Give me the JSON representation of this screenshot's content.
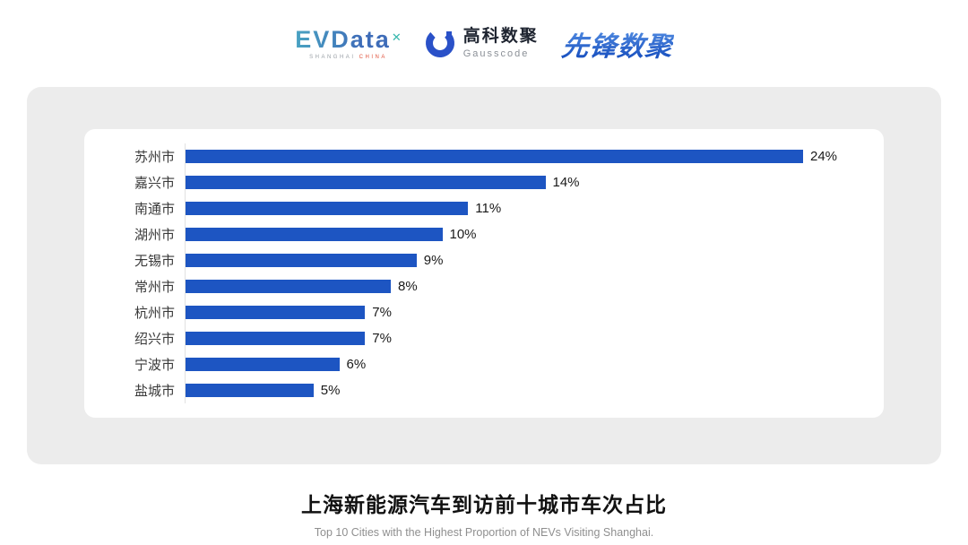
{
  "header": {
    "evdata": {
      "word": "EVData",
      "sup": "✕",
      "tagline_left": "SHANGHAI",
      "tagline_right": "CHINA"
    },
    "gausscode": {
      "icon": "gausscode-ring-icon",
      "cn": "高科数聚",
      "en": "Gausscode"
    },
    "xianfeng": {
      "word": "先锋数聚"
    }
  },
  "chart_data": {
    "type": "bar",
    "orientation": "horizontal",
    "categories": [
      "苏州市",
      "嘉兴市",
      "南通市",
      "湖州市",
      "无锡市",
      "常州市",
      "杭州市",
      "绍兴市",
      "宁波市",
      "盐城市"
    ],
    "values": [
      24,
      14,
      11,
      10,
      9,
      8,
      7,
      7,
      6,
      5
    ],
    "value_suffix": "%",
    "xlim": [
      0,
      26
    ],
    "grid": "off",
    "legend": "none",
    "bar_color": "#1d55c2",
    "title": "上海新能源汽车到访前十城市车次占比",
    "subtitle": "Top 10 Cities with the Highest Proportion of  NEVs Visiting Shanghai."
  }
}
